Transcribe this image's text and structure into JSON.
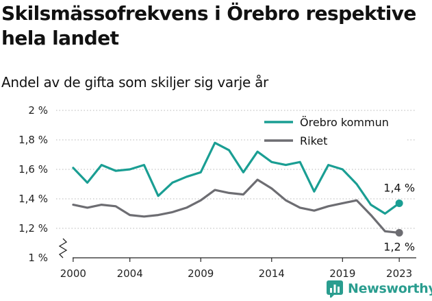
{
  "header": {
    "title": "Skilsmässofrekvens i Örebro respektive hela landet",
    "subtitle": "Andel av de gifta som skiljer sig varje år"
  },
  "brand": {
    "name": "Newsworthy",
    "color": "#2a9d8f",
    "icon": "newsworthy-logo-icon"
  },
  "colors": {
    "orebro": "#1a9e93",
    "riket": "#6d6d72",
    "grid": "#c4c4c4"
  },
  "chart_data": {
    "type": "line",
    "title": "Skilsmässofrekvens i Örebro respektive hela landet",
    "subtitle": "Andel av de gifta som skiljer sig varje år",
    "x": [
      2000,
      2001,
      2002,
      2003,
      2004,
      2005,
      2006,
      2007,
      2008,
      2009,
      2010,
      2011,
      2012,
      2013,
      2014,
      2015,
      2016,
      2017,
      2018,
      2019,
      2020,
      2021,
      2022,
      2023
    ],
    "xticks": [
      2000,
      2004,
      2009,
      2014,
      2019,
      2023
    ],
    "xlim": [
      1998.8,
      2024.2
    ],
    "yticks": [
      1,
      1.2,
      1.4,
      1.6,
      1.8,
      2
    ],
    "ytick_labels": [
      "1 %",
      "1,2 %",
      "1,4 %",
      "1,6 %",
      "1,8 %",
      "2 %"
    ],
    "ylim": [
      1,
      2
    ],
    "y_axis_break": true,
    "grid": "horizontal dotted",
    "legend_position": "top-right",
    "series": [
      {
        "name": "Örebro kommun",
        "color": "#1a9e93",
        "values": [
          1.61,
          1.51,
          1.63,
          1.59,
          1.6,
          1.63,
          1.42,
          1.51,
          1.55,
          1.58,
          1.78,
          1.73,
          1.58,
          1.72,
          1.65,
          1.63,
          1.65,
          1.45,
          1.63,
          1.6,
          1.5,
          1.36,
          1.3,
          1.37
        ],
        "end_label": "1,4 %"
      },
      {
        "name": "Riket",
        "color": "#6d6d72",
        "values": [
          1.36,
          1.34,
          1.36,
          1.35,
          1.29,
          1.28,
          1.29,
          1.31,
          1.34,
          1.39,
          1.46,
          1.44,
          1.43,
          1.53,
          1.47,
          1.39,
          1.34,
          1.32,
          1.35,
          1.37,
          1.39,
          1.29,
          1.18,
          1.17
        ],
        "end_label": "1,2 %"
      }
    ]
  }
}
